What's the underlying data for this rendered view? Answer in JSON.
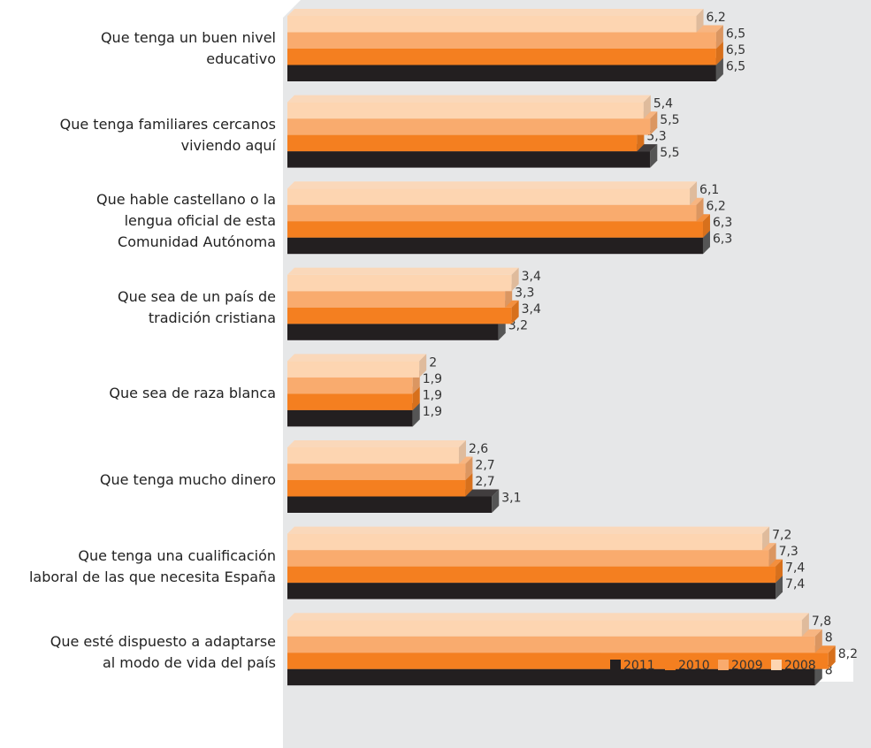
{
  "chart_data": {
    "type": "bar",
    "orientation": "horizontal",
    "3d": true,
    "legend": "bottom-right",
    "categories": [
      "Que tenga un buen nivel\neducativo",
      "Que tenga familiares cercanos\nviviendo aquí",
      "Que hable castellano o la\nlengua oficial de esta\nComunidad Autónoma",
      "Que sea de un país de\ntradición cristiana",
      "Que sea de raza blanca",
      "Que tenga mucho dinero",
      "Que tenga una cualificación\nlaboral de las que necesita España",
      "Que esté dispuesto a adaptarse\nal modo de vida del país"
    ],
    "series": [
      {
        "name": "2011",
        "color": "#231f20",
        "values": [
          6.5,
          5.5,
          6.3,
          3.2,
          1.9,
          3.1,
          7.4,
          8
        ],
        "value_labels": [
          "6,5",
          "5,5",
          "6,3",
          "3,2",
          "1,9",
          "3,1",
          "7,4",
          "8"
        ]
      },
      {
        "name": "2010",
        "color": "#f47f20",
        "values": [
          6.5,
          5.3,
          6.3,
          3.4,
          1.9,
          2.7,
          7.4,
          8.2
        ],
        "value_labels": [
          "6,5",
          "5,3",
          "6,3",
          "3,4",
          "1,9",
          "2,7",
          "7,4",
          "8,2"
        ]
      },
      {
        "name": "2009",
        "color": "#f9ab6e",
        "values": [
          6.5,
          5.5,
          6.2,
          3.3,
          1.9,
          2.7,
          7.3,
          8
        ],
        "value_labels": [
          "6,5",
          "5,5",
          "6,2",
          "3,3",
          "1,9",
          "2,7",
          "7,3",
          "8"
        ]
      },
      {
        "name": "2008",
        "color": "#fdd5b1",
        "values": [
          6.2,
          5.4,
          6.1,
          3.4,
          2,
          2.6,
          7.2,
          7.8
        ],
        "value_labels": [
          "6,2",
          "5,4",
          "6,1",
          "3,4",
          "2",
          "2,6",
          "7,2",
          "7,8"
        ]
      }
    ]
  }
}
